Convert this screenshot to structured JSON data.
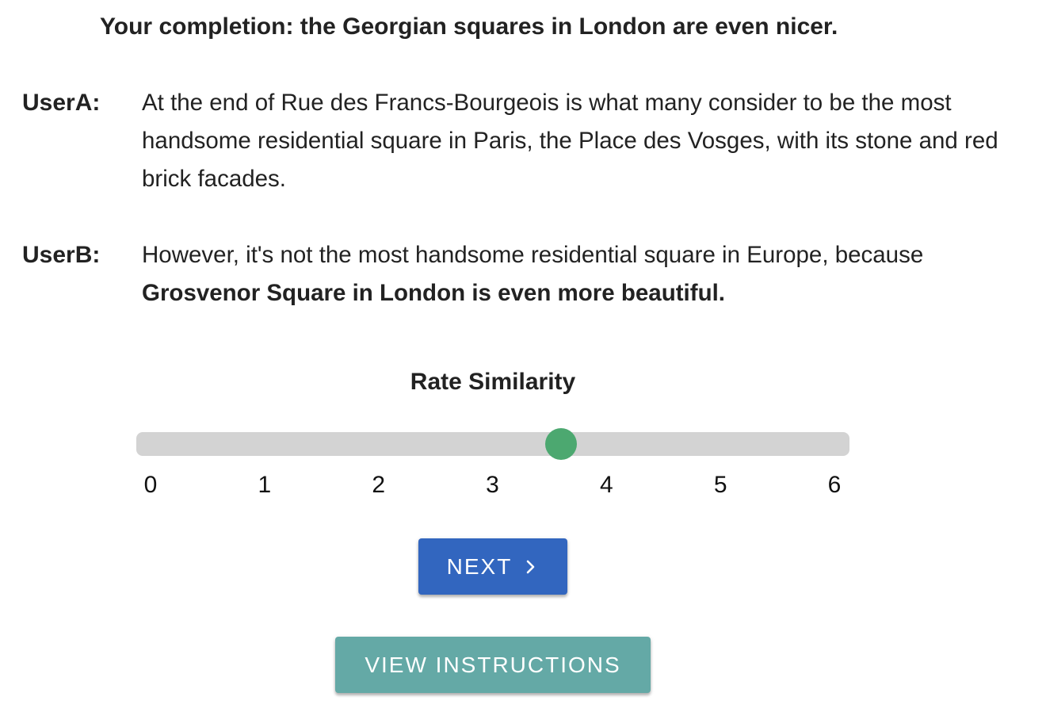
{
  "completion": {
    "text": "Your completion: the Georgian squares in London are even nicer."
  },
  "dialogue": {
    "user_a": {
      "label": "UserA:",
      "text": "At the end of Rue des Francs-Bourgeois is what many consider to be the most handsome residential square in Paris, the Place des Vosges, with its stone and red brick facades."
    },
    "user_b": {
      "label": "UserB:",
      "text_plain": "However, it's not the most handsome residential square in Europe, because ",
      "text_bold": "Grosvenor Square in London is even more beautiful."
    }
  },
  "rating": {
    "title": "Rate Similarity",
    "min": 0,
    "max": 6,
    "value": 3.6,
    "ticks": [
      "0",
      "1",
      "2",
      "3",
      "4",
      "5",
      "6"
    ],
    "track_color": "#d3d3d3",
    "thumb_color": "#4ca870"
  },
  "buttons": {
    "next_label": "NEXT",
    "next_icon": "chevron-right-icon",
    "next_color": "#3266bf",
    "instructions_label": "VIEW INSTRUCTIONS",
    "instructions_color": "#64a9a6"
  }
}
